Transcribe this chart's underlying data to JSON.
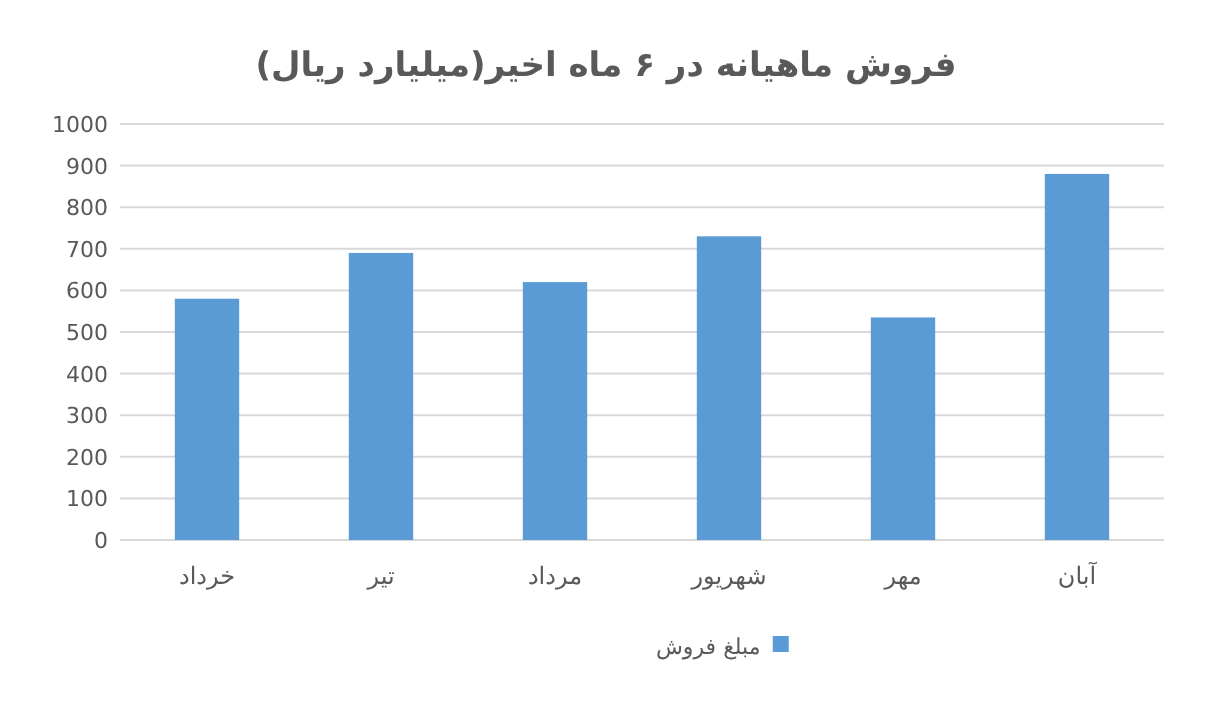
{
  "chart_data": {
    "type": "bar",
    "title": "فروش ماهیانه در ۶ ماه اخیر(میلیارد ریال)",
    "categories": [
      "خرداد",
      "تیر",
      "مرداد",
      "شهریور",
      "مهر",
      "آبان"
    ],
    "series": [
      {
        "name": "مبلغ فروش",
        "color": "#5b9bd5",
        "values": [
          580,
          690,
          620,
          730,
          535,
          880
        ]
      }
    ],
    "ylim": [
      0,
      1000
    ],
    "yticks": [
      0,
      100,
      200,
      300,
      400,
      500,
      600,
      700,
      800,
      900,
      1000
    ],
    "grid": "y",
    "legend": "bottom"
  }
}
